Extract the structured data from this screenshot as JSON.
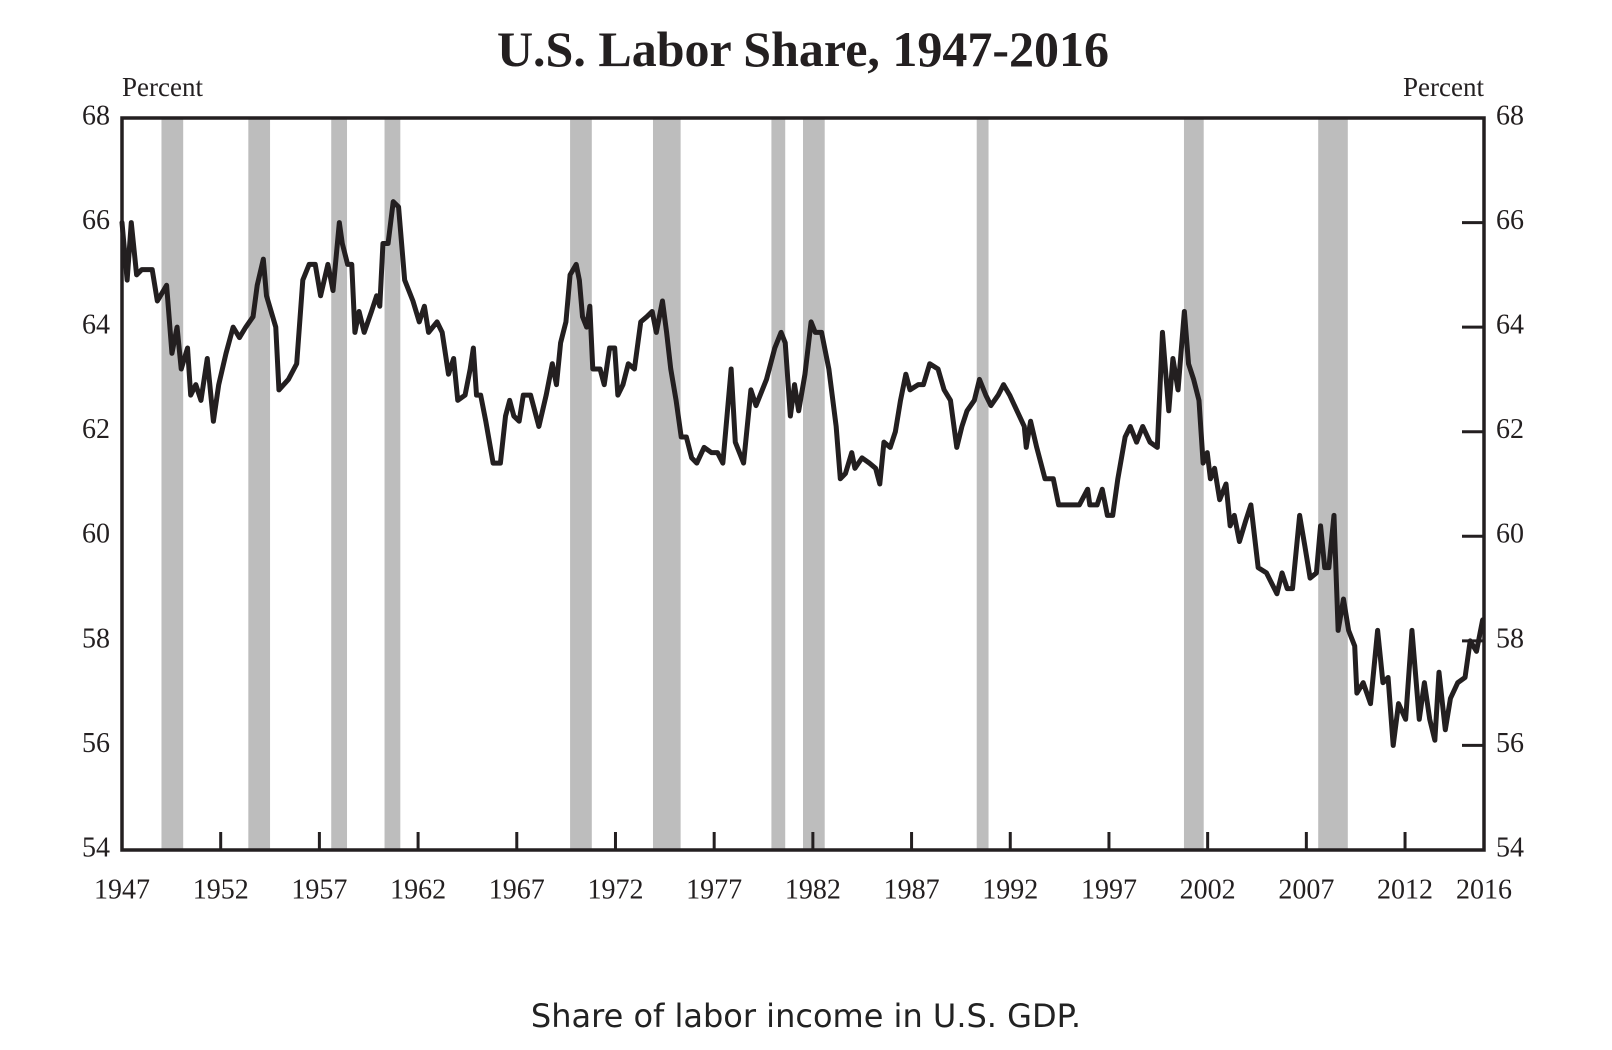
{
  "chart_data": {
    "type": "line",
    "title": "U.S. Labor Share, 1947-2016",
    "ylabel": "Percent",
    "y2label": "Percent",
    "caption": "Share of labor income in U.S. GDP.",
    "color": "#231f20",
    "recession_color": "#bdbdbd",
    "xlim": [
      1947,
      2016
    ],
    "xticks": [
      1947,
      1952,
      1957,
      1962,
      1967,
      1972,
      1977,
      1982,
      1987,
      1992,
      1997,
      2002,
      2007,
      2012,
      2016
    ],
    "ylim": [
      54,
      68
    ],
    "yticks": [
      54,
      56,
      58,
      60,
      62,
      64,
      66,
      68
    ],
    "y2lim": [
      54,
      68
    ],
    "y2ticks": [
      54,
      56,
      58,
      60,
      62,
      64,
      66,
      68
    ],
    "recessions": [
      [
        1949.0,
        1950.1
      ],
      [
        1953.4,
        1954.5
      ],
      [
        1957.6,
        1958.4
      ],
      [
        1960.3,
        1961.1
      ],
      [
        1969.7,
        1970.8
      ],
      [
        1973.9,
        1975.3
      ],
      [
        1979.9,
        1980.6
      ],
      [
        1981.5,
        1982.6
      ],
      [
        1990.3,
        1990.9
      ],
      [
        2000.8,
        2001.8
      ],
      [
        2007.6,
        2009.1
      ]
    ],
    "x": [
      1947.0,
      1947.26,
      1947.47,
      1947.74,
      1948.0,
      1948.53,
      1948.79,
      1949.26,
      1949.53,
      1949.79,
      1950.0,
      1950.32,
      1950.48,
      1950.74,
      1951.0,
      1951.32,
      1951.63,
      1951.9,
      1952.27,
      1952.63,
      1952.95,
      1953.27,
      1953.64,
      1953.85,
      1954.16,
      1954.32,
      1954.79,
      1954.95,
      1955.43,
      1955.85,
      1956.16,
      1956.48,
      1956.79,
      1957.06,
      1957.43,
      1957.69,
      1958.01,
      1958.16,
      1958.43,
      1958.64,
      1958.8,
      1959.01,
      1959.27,
      1959.64,
      1959.9,
      1960.06,
      1960.22,
      1960.48,
      1960.74,
      1961.01,
      1961.32,
      1961.74,
      1962.06,
      1962.32,
      1962.53,
      1962.96,
      1963.22,
      1963.54,
      1963.8,
      1964.01,
      1964.38,
      1964.64,
      1964.8,
      1964.96,
      1965.17,
      1965.43,
      1965.8,
      1966.17,
      1966.43,
      1966.64,
      1966.85,
      1967.12,
      1967.33,
      1967.7,
      1967.91,
      1968.12,
      1968.49,
      1968.8,
      1969.01,
      1969.22,
      1969.49,
      1969.7,
      1970.01,
      1970.17,
      1970.33,
      1970.54,
      1970.7,
      1970.85,
      1971.22,
      1971.43,
      1971.7,
      1971.96,
      1972.12,
      1972.38,
      1972.65,
      1972.96,
      1973.28,
      1973.59,
      1973.86,
      1974.07,
      1974.38,
      1974.59,
      1974.8,
      1975.07,
      1975.33,
      1975.59,
      1975.86,
      1976.12,
      1976.49,
      1976.86,
      1977.17,
      1977.44,
      1977.86,
      1978.07,
      1978.49,
      1978.86,
      1979.12,
      1979.65,
      1980.07,
      1980.39,
      1980.6,
      1980.86,
      1981.07,
      1981.28,
      1981.6,
      1981.91,
      1982.12,
      1982.44,
      1982.81,
      1983.18,
      1983.39,
      1983.65,
      1983.97,
      1984.13,
      1984.49,
      1984.86,
      1985.18,
      1985.39,
      1985.6,
      1985.92,
      1986.18,
      1986.44,
      1986.71,
      1986.92,
      1987.34,
      1987.6,
      1987.92,
      1988.34,
      1988.65,
      1988.97,
      1989.29,
      1989.55,
      1989.81,
      1990.18,
      1990.44,
      1990.76,
      1991.02,
      1991.39,
      1991.66,
      1991.97,
      1992.34,
      1992.71,
      1992.81,
      1993.03,
      1993.34,
      1993.76,
      1994.18,
      1994.45,
      1994.97,
      1995.5,
      1995.92,
      1996.03,
      1996.4,
      1996.66,
      1996.92,
      1997.19,
      1997.45,
      1997.82,
      1998.08,
      1998.4,
      1998.71,
      1999.08,
      1999.45,
      1999.71,
      2000.03,
      2000.24,
      2000.5,
      2000.82,
      2001.03,
      2001.29,
      2001.56,
      2001.77,
      2001.98,
      2002.14,
      2002.35,
      2002.61,
      2002.93,
      2003.14,
      2003.35,
      2003.61,
      2003.93,
      2004.19,
      2004.56,
      2004.98,
      2005.51,
      2005.77,
      2006.03,
      2006.3,
      2006.66,
      2006.93,
      2007.19,
      2007.51,
      2007.72,
      2007.93,
      2008.14,
      2008.4,
      2008.61,
      2008.88,
      2009.14,
      2009.45,
      2009.56,
      2009.88,
      2010.25,
      2010.61,
      2010.88,
      2011.14,
      2011.4,
      2011.67,
      2012.03,
      2012.35,
      2012.72,
      2012.98,
      2013.25,
      2013.51,
      2013.72,
      2014.04,
      2014.3,
      2014.67,
      2015.04,
      2015.3,
      2015.62,
      2015.93
    ],
    "values": [
      66.0,
      64.9,
      66.0,
      65.0,
      65.1,
      65.1,
      64.5,
      64.8,
      63.5,
      64.0,
      63.2,
      63.6,
      62.7,
      62.9,
      62.6,
      63.4,
      62.2,
      62.9,
      63.5,
      64.0,
      63.8,
      64.0,
      64.2,
      64.8,
      65.3,
      64.6,
      64.0,
      62.8,
      63.0,
      63.3,
      64.9,
      65.2,
      65.2,
      64.6,
      65.2,
      64.7,
      66.0,
      65.6,
      65.2,
      65.2,
      63.9,
      64.3,
      63.9,
      64.3,
      64.6,
      64.4,
      65.6,
      65.6,
      66.4,
      66.3,
      64.9,
      64.5,
      64.1,
      64.4,
      63.9,
      64.1,
      63.9,
      63.1,
      63.4,
      62.6,
      62.7,
      63.2,
      63.6,
      62.7,
      62.7,
      62.2,
      61.4,
      61.4,
      62.3,
      62.6,
      62.3,
      62.2,
      62.7,
      62.7,
      62.4,
      62.1,
      62.7,
      63.3,
      62.9,
      63.7,
      64.1,
      65.0,
      65.2,
      64.9,
      64.2,
      64.0,
      64.4,
      63.2,
      63.2,
      62.9,
      63.6,
      63.6,
      62.7,
      62.9,
      63.3,
      63.2,
      64.1,
      64.2,
      64.3,
      63.9,
      64.5,
      63.9,
      63.2,
      62.6,
      61.9,
      61.9,
      61.5,
      61.4,
      61.7,
      61.6,
      61.6,
      61.4,
      63.2,
      61.8,
      61.4,
      62.8,
      62.5,
      63.0,
      63.6,
      63.9,
      63.7,
      62.3,
      62.9,
      62.4,
      63.1,
      64.1,
      63.9,
      63.9,
      63.2,
      62.1,
      61.1,
      61.2,
      61.6,
      61.3,
      61.5,
      61.4,
      61.3,
      61.0,
      61.8,
      61.7,
      62.0,
      62.6,
      63.1,
      62.8,
      62.9,
      62.9,
      63.3,
      63.2,
      62.8,
      62.6,
      61.7,
      62.1,
      62.4,
      62.6,
      63.0,
      62.7,
      62.5,
      62.7,
      62.9,
      62.7,
      62.4,
      62.1,
      61.7,
      62.2,
      61.7,
      61.1,
      61.1,
      60.6,
      60.6,
      60.6,
      60.9,
      60.6,
      60.6,
      60.9,
      60.4,
      60.4,
      61.1,
      61.9,
      62.1,
      61.8,
      62.1,
      61.8,
      61.7,
      63.9,
      62.4,
      63.4,
      62.8,
      64.3,
      63.3,
      63.0,
      62.6,
      61.4,
      61.6,
      61.1,
      61.3,
      60.7,
      61.0,
      60.2,
      60.4,
      59.9,
      60.3,
      60.6,
      59.4,
      59.3,
      58.9,
      59.3,
      59.0,
      59.0,
      60.4,
      59.8,
      59.2,
      59.3,
      60.2,
      59.4,
      59.4,
      60.4,
      58.2,
      58.8,
      58.2,
      57.9,
      57.0,
      57.2,
      56.8,
      58.2,
      57.2,
      57.3,
      56.0,
      56.8,
      56.5,
      58.2,
      56.5,
      57.2,
      56.5,
      56.1,
      57.4,
      56.3,
      56.9,
      57.2,
      57.3,
      58.0,
      57.8,
      58.4
    ]
  }
}
